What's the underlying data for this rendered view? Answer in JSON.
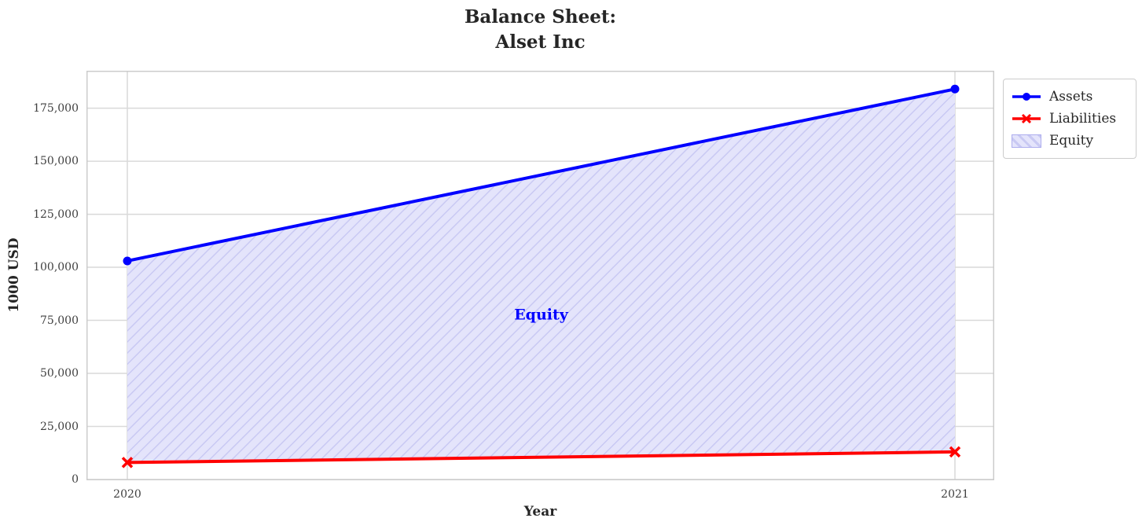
{
  "chart_data": {
    "type": "line",
    "title": "Balance Sheet:\nAlset Inc",
    "xlabel": "Year",
    "ylabel": "1000 USD",
    "categories": [
      "2020",
      "2021"
    ],
    "series": [
      {
        "name": "Assets",
        "values": [
          103000,
          184000
        ],
        "color": "#0000ff",
        "marker": "circle"
      },
      {
        "name": "Liabilities",
        "values": [
          8000,
          13000
        ],
        "color": "#ff0000",
        "marker": "x"
      }
    ],
    "area": {
      "name": "Equity",
      "between": [
        "Assets",
        "Liabilities"
      ],
      "values": [
        95000,
        171000
      ],
      "fill": "#e4e4fb",
      "hatch": "/",
      "hatch_color": "#c9c9f3"
    },
    "annotation": {
      "text": "Equity",
      "color": "#0000ff",
      "x_frac": 0.5,
      "value": 78000
    },
    "ylim": [
      0,
      193000
    ],
    "yticks": [
      0,
      25000,
      50000,
      75000,
      100000,
      125000,
      150000,
      175000
    ],
    "ytick_labels": [
      "0",
      "25,000",
      "50,000",
      "75,000",
      "100,000",
      "125,000",
      "150,000",
      "175,000"
    ],
    "grid": true,
    "grid_color": "#d9d9d9",
    "spine_color": "#cccccc",
    "legend": {
      "position": "upper-right-outside",
      "entries": [
        {
          "label": "Assets",
          "type": "line-circle",
          "color": "#0000ff"
        },
        {
          "label": "Liabilities",
          "type": "line-x",
          "color": "#ff0000"
        },
        {
          "label": "Equity",
          "type": "patch",
          "fill": "#e4e4fb",
          "hatch_color": "#c9c9f3"
        }
      ]
    }
  }
}
